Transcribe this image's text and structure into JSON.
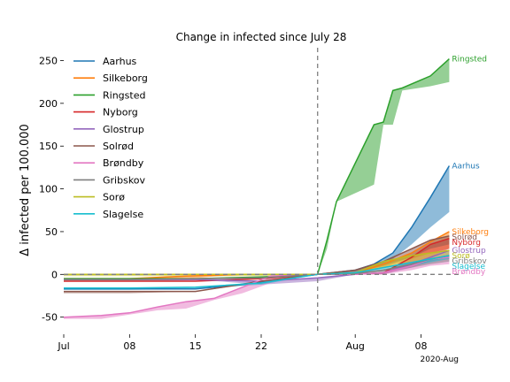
{
  "chart_data": {
    "type": "area",
    "title": "Change in infected since July 28",
    "ylabel": "Δ infected per 100.000",
    "xlabel": "",
    "x_offset_label": "2020-Aug",
    "xlim": [
      "2020-07-01",
      "2020-08-12"
    ],
    "ylim": [
      -70,
      265
    ],
    "x_ticks": [
      {
        "date": "2020-07-01",
        "label": "Jul"
      },
      {
        "date": "2020-07-08",
        "label": "08"
      },
      {
        "date": "2020-07-15",
        "label": "15"
      },
      {
        "date": "2020-07-22",
        "label": "22"
      },
      {
        "date": "2020-08-01",
        "label": "Aug"
      },
      {
        "date": "2020-08-08",
        "label": "08"
      }
    ],
    "y_ticks": [
      -50,
      0,
      50,
      100,
      150,
      200,
      250
    ],
    "reference_lines": {
      "vertical_date": "2020-07-28",
      "horizontal_value": 0
    },
    "grid": false,
    "legend_position": "top-left",
    "series": [
      {
        "name": "Aarhus",
        "color": "#1f77b4",
        "end_label": "Aarhus",
        "x": [
          "2020-07-01",
          "2020-07-08",
          "2020-07-15",
          "2020-07-20",
          "2020-07-28",
          "2020-08-01",
          "2020-08-03",
          "2020-08-05",
          "2020-08-07",
          "2020-08-09",
          "2020-08-11"
        ],
        "upper": [
          -17,
          -17,
          -17,
          -12,
          0,
          5,
          12,
          25,
          55,
          90,
          127
        ],
        "lower": [
          -17,
          -17,
          -17,
          -12,
          0,
          3,
          8,
          18,
          35,
          55,
          73
        ]
      },
      {
        "name": "Silkeborg",
        "color": "#ff7f0e",
        "end_label": "Silkeborg",
        "x": [
          "2020-07-01",
          "2020-07-08",
          "2020-07-14",
          "2020-07-20",
          "2020-07-28",
          "2020-08-01",
          "2020-08-04",
          "2020-08-07",
          "2020-08-09",
          "2020-08-11"
        ],
        "upper": [
          -5,
          -5,
          -2,
          0,
          0,
          2,
          12,
          25,
          38,
          50
        ],
        "lower": [
          -5,
          -5,
          -5,
          0,
          0,
          1,
          8,
          18,
          25,
          30
        ]
      },
      {
        "name": "Ringsted",
        "color": "#2ca02c",
        "end_label": "Ringsted",
        "x": [
          "2020-07-01",
          "2020-07-08",
          "2020-07-15",
          "2020-07-22",
          "2020-07-28",
          "2020-07-29",
          "2020-07-30",
          "2020-08-03",
          "2020-08-04",
          "2020-08-05",
          "2020-08-06",
          "2020-08-09",
          "2020-08-11"
        ],
        "upper": [
          -5,
          -5,
          -5,
          -3,
          0,
          40,
          85,
          175,
          178,
          215,
          218,
          232,
          252
        ],
        "lower": [
          -5,
          -5,
          -5,
          -3,
          0,
          30,
          85,
          105,
          175,
          175,
          215,
          220,
          225
        ]
      },
      {
        "name": "Nyborg",
        "color": "#d62728",
        "end_label": "Nyborg",
        "x": [
          "2020-07-01",
          "2020-07-08",
          "2020-07-15",
          "2020-07-22",
          "2020-07-28",
          "2020-08-01",
          "2020-08-04",
          "2020-08-07",
          "2020-08-09",
          "2020-08-11"
        ],
        "upper": [
          -8,
          -8,
          -8,
          -5,
          0,
          0,
          2,
          20,
          35,
          42
        ],
        "lower": [
          -8,
          -8,
          -8,
          -5,
          0,
          0,
          0,
          10,
          20,
          30
        ]
      },
      {
        "name": "Glostrup",
        "color": "#9467bd",
        "end_label": "Glostrup",
        "x": [
          "2020-07-01",
          "2020-07-08",
          "2020-07-15",
          "2020-07-22",
          "2020-07-28",
          "2020-08-01",
          "2020-08-04",
          "2020-08-07",
          "2020-08-09",
          "2020-08-11"
        ],
        "upper": [
          -6,
          -6,
          -6,
          -8,
          -4,
          0,
          2,
          12,
          20,
          28
        ],
        "lower": [
          -6,
          -6,
          -6,
          -12,
          -8,
          0,
          0,
          8,
          15,
          20
        ]
      },
      {
        "name": "Solrød",
        "color": "#8c564b",
        "end_label": "Solrød",
        "x": [
          "2020-07-01",
          "2020-07-08",
          "2020-07-15",
          "2020-07-22",
          "2020-07-28",
          "2020-08-01",
          "2020-08-04",
          "2020-08-07",
          "2020-08-09",
          "2020-08-11"
        ],
        "upper": [
          -20,
          -20,
          -20,
          -8,
          0,
          5,
          15,
          30,
          40,
          45
        ],
        "lower": [
          -22,
          -22,
          -20,
          -10,
          0,
          2,
          10,
          20,
          30,
          35
        ]
      },
      {
        "name": "Brøndby",
        "color": "#e377c2",
        "end_label": "Brøndby",
        "x": [
          "2020-07-01",
          "2020-07-05",
          "2020-07-08",
          "2020-07-11",
          "2020-07-14",
          "2020-07-17",
          "2020-07-20",
          "2020-07-23",
          "2020-07-28",
          "2020-08-01",
          "2020-08-04",
          "2020-08-07",
          "2020-08-09",
          "2020-08-11"
        ],
        "upper": [
          -50,
          -48,
          -45,
          -38,
          -32,
          -28,
          -15,
          -2,
          0,
          0,
          2,
          10,
          18,
          20
        ],
        "lower": [
          -52,
          -52,
          -47,
          -42,
          -40,
          -30,
          -22,
          -10,
          0,
          0,
          0,
          5,
          10,
          12
        ]
      },
      {
        "name": "Gribskov",
        "color": "#7f7f7f",
        "end_label": "Gribskov",
        "x": [
          "2020-07-01",
          "2020-07-08",
          "2020-07-15",
          "2020-07-22",
          "2020-07-28",
          "2020-08-01",
          "2020-08-04",
          "2020-08-07",
          "2020-08-09",
          "2020-08-11"
        ],
        "upper": [
          -6,
          -6,
          -5,
          -4,
          0,
          1,
          5,
          12,
          18,
          22
        ],
        "lower": [
          -8,
          -8,
          -7,
          -5,
          0,
          0,
          2,
          8,
          12,
          15
        ]
      },
      {
        "name": "Sorø",
        "color": "#bcbd22",
        "end_label": "Sorø",
        "x": [
          "2020-07-01",
          "2020-07-08",
          "2020-07-15",
          "2020-07-22",
          "2020-07-28",
          "2020-08-01",
          "2020-08-04",
          "2020-08-07",
          "2020-08-09",
          "2020-08-11"
        ],
        "upper": [
          0,
          0,
          0,
          0,
          0,
          2,
          15,
          22,
          25,
          28
        ],
        "lower": [
          -2,
          -2,
          -2,
          -2,
          0,
          0,
          8,
          15,
          18,
          20
        ]
      },
      {
        "name": "Slagelse",
        "color": "#17becf",
        "end_label": "Slagelse",
        "x": [
          "2020-07-01",
          "2020-07-08",
          "2020-07-15",
          "2020-07-22",
          "2020-07-28",
          "2020-08-01",
          "2020-08-04",
          "2020-08-07",
          "2020-08-09",
          "2020-08-11"
        ],
        "upper": [
          -16,
          -16,
          -15,
          -10,
          0,
          2,
          8,
          14,
          18,
          22
        ],
        "lower": [
          -18,
          -18,
          -17,
          -12,
          0,
          0,
          5,
          10,
          14,
          18
        ]
      }
    ]
  }
}
